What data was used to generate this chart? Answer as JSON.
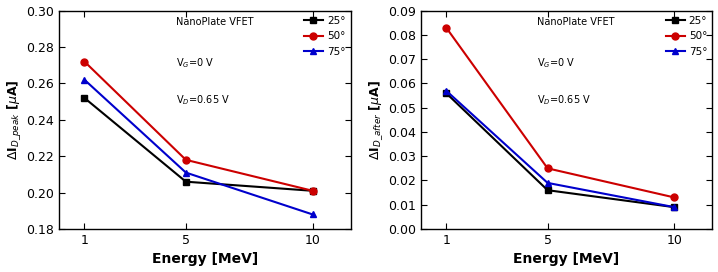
{
  "energy": [
    1,
    5,
    10
  ],
  "plot1": {
    "ylabel": "$\\Delta$I$_{D\\_peak}$ [$\\mu$A]",
    "xlabel": "Energy [MeV]",
    "ylim": [
      0.18,
      0.3
    ],
    "yticks": [
      0.18,
      0.2,
      0.22,
      0.24,
      0.26,
      0.28,
      0.3
    ],
    "series": {
      "25": {
        "values": [
          0.252,
          0.206,
          0.201
        ],
        "color": "#000000",
        "marker": "s"
      },
      "50": {
        "values": [
          0.272,
          0.218,
          0.201
        ],
        "color": "#cc0000",
        "marker": "o"
      },
      "75": {
        "values": [
          0.262,
          0.211,
          0.188
        ],
        "color": "#0000cc",
        "marker": "^"
      }
    },
    "legend_text1": "NanoPlate VFET",
    "legend_text2": "V$_G$=0 V",
    "legend_text3": "V$_D$=0.65 V",
    "angles": [
      "25°",
      "50°",
      "75°"
    ]
  },
  "plot2": {
    "ylabel": "$\\Delta$I$_{D\\_after}$ [$\\mu$A]",
    "xlabel": "Energy [MeV]",
    "ylim": [
      0.0,
      0.09
    ],
    "yticks": [
      0.0,
      0.01,
      0.02,
      0.03,
      0.04,
      0.05,
      0.06,
      0.07,
      0.08,
      0.09
    ],
    "series": {
      "25": {
        "values": [
          0.056,
          0.016,
          0.009
        ],
        "color": "#000000",
        "marker": "s"
      },
      "50": {
        "values": [
          0.083,
          0.025,
          0.013
        ],
        "color": "#cc0000",
        "marker": "o"
      },
      "75": {
        "values": [
          0.057,
          0.019,
          0.009
        ],
        "color": "#0000cc",
        "marker": "^"
      }
    },
    "legend_text1": "NanoPlate VFET",
    "legend_text2": "V$_G$=0 V",
    "legend_text3": "V$_D$=0.65 V",
    "angles": [
      "25°",
      "50°",
      "75°"
    ]
  },
  "background_color": "#ffffff",
  "xtick_positions": [
    1,
    5,
    10
  ],
  "xtick_labels": [
    "1",
    "5",
    "10"
  ]
}
